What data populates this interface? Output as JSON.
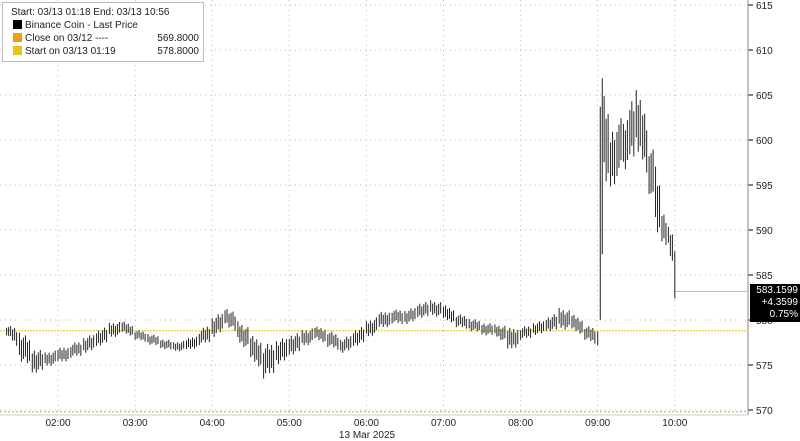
{
  "legend": {
    "range": "Start: 03/13 01:18 End: 03/13 10:56",
    "series": "Binance Coin - Last Price",
    "close_label": "Close on 03/12 ----",
    "close_value": "569.8000",
    "start_label": "Start on 03/13 01:19",
    "start_value": "578.8000",
    "colors": {
      "series": "#000000",
      "close": "#f39c12",
      "start": "#e6c619"
    }
  },
  "last": {
    "price": "583.1599",
    "change": "+4.3599",
    "pct": "0.75%"
  },
  "chart_data": {
    "type": "bar",
    "title": "",
    "xlabel": "13 Mar 2025",
    "ylabel": "",
    "ylim": [
      569.5,
      615.5
    ],
    "xlim": [
      "01:18",
      "10:56"
    ],
    "yticks": [
      570,
      575,
      580,
      585,
      590,
      595,
      600,
      605,
      610,
      615
    ],
    "xticks": [
      "02:00",
      "03:00",
      "04:00",
      "05:00",
      "06:00",
      "07:00",
      "08:00",
      "09:00",
      "10:00"
    ],
    "grid": true,
    "reference_lines": {
      "close_03_12": 569.8,
      "start_03_13": 578.8,
      "last": 583.1599
    },
    "bars": [
      [
        "01:20",
        578.3,
        579.5
      ],
      [
        "01:30",
        575.5,
        579
      ],
      [
        "01:40",
        574,
        577
      ],
      [
        "01:50",
        574.8,
        576.5
      ],
      [
        "02:00",
        575.2,
        577
      ],
      [
        "02:10",
        575.8,
        577.5
      ],
      [
        "02:20",
        576.3,
        578.2
      ],
      [
        "02:30",
        577,
        579
      ],
      [
        "02:40",
        578,
        579.8
      ],
      [
        "02:50",
        578.5,
        580
      ],
      [
        "03:00",
        577.8,
        579
      ],
      [
        "03:10",
        577.3,
        578.6
      ],
      [
        "03:20",
        576.8,
        578
      ],
      [
        "03:30",
        576.5,
        577.6
      ],
      [
        "03:40",
        576.6,
        578
      ],
      [
        "03:50",
        577.2,
        579
      ],
      [
        "04:00",
        578,
        580.5
      ],
      [
        "04:10",
        579.5,
        581.6
      ],
      [
        "04:20",
        577.5,
        580
      ],
      [
        "04:30",
        575.5,
        578.5
      ],
      [
        "04:40",
        573.5,
        577.5
      ],
      [
        "04:50",
        575,
        578
      ],
      [
        "05:00",
        576,
        578.5
      ],
      [
        "05:10",
        577,
        579
      ],
      [
        "05:20",
        577.8,
        579.4
      ],
      [
        "05:30",
        577,
        579
      ],
      [
        "05:40",
        576.3,
        578
      ],
      [
        "05:50",
        577,
        579
      ],
      [
        "06:00",
        578,
        580
      ],
      [
        "06:10",
        579,
        581
      ],
      [
        "06:20",
        579.6,
        581.3
      ],
      [
        "06:30",
        579.5,
        581.2
      ],
      [
        "06:40",
        580.2,
        582
      ],
      [
        "06:50",
        580.5,
        582.3
      ],
      [
        "07:00",
        580,
        581.8
      ],
      [
        "07:10",
        579.2,
        580.8
      ],
      [
        "07:20",
        578.8,
        580.3
      ],
      [
        "07:30",
        578.3,
        579.8
      ],
      [
        "07:40",
        578.2,
        579.6
      ],
      [
        "07:50",
        576.5,
        579.3
      ],
      [
        "08:00",
        577.8,
        579.3
      ],
      [
        "08:10",
        578.3,
        579.8
      ],
      [
        "08:20",
        578.7,
        580.4
      ],
      [
        "08:30",
        579,
        581.5
      ],
      [
        "08:40",
        578.8,
        580.8
      ],
      [
        "08:50",
        577.8,
        579.5
      ],
      [
        "09:00",
        576.8,
        579
      ],
      [
        "09:02",
        578,
        611.8
      ],
      [
        "09:05",
        595,
        605.5
      ],
      [
        "09:10",
        594,
        601
      ],
      [
        "09:15",
        596,
        603
      ],
      [
        "09:20",
        596.5,
        602.5
      ],
      [
        "09:25",
        598,
        605
      ],
      [
        "09:30",
        598.5,
        606
      ],
      [
        "09:35",
        597,
        604
      ],
      [
        "09:40",
        594,
        600
      ],
      [
        "09:45",
        590,
        598
      ],
      [
        "09:50",
        588.5,
        592.5
      ],
      [
        "09:55",
        588,
        590.5
      ],
      [
        "10:00",
        581.5,
        589
      ]
    ]
  }
}
